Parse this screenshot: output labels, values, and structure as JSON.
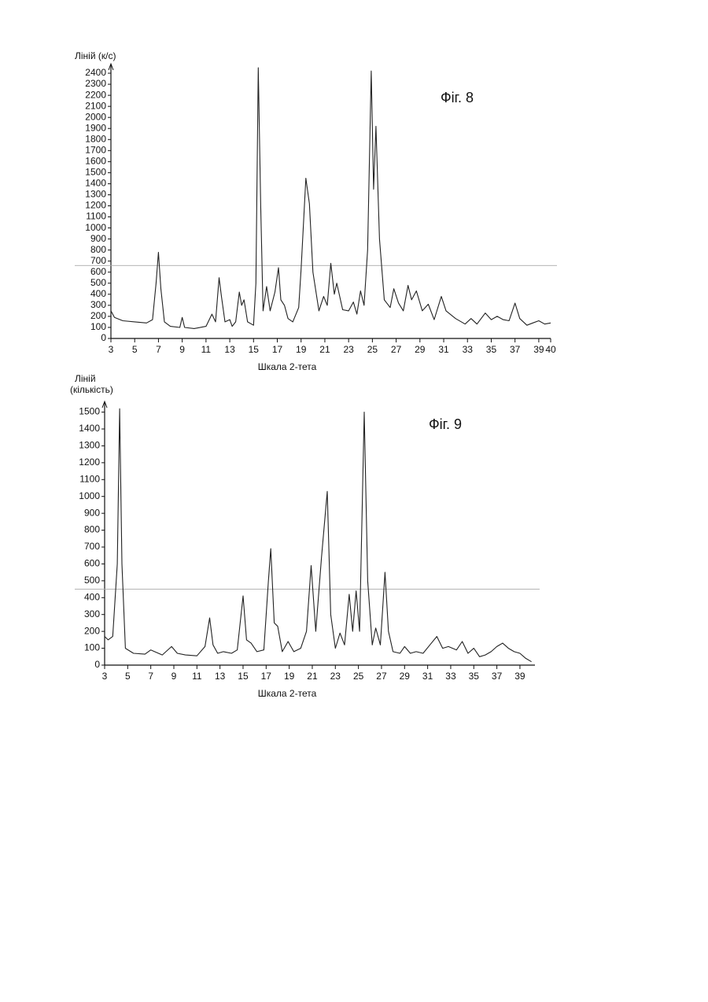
{
  "chart_data": [
    {
      "type": "line",
      "title": "Фіг. 8",
      "y_label": "Ліній (к/с)",
      "x_label": "Шкала 2-тета",
      "xlim": [
        3,
        40
      ],
      "xticks": [
        3,
        5,
        7,
        9,
        11,
        13,
        15,
        17,
        19,
        21,
        23,
        25,
        27,
        29,
        31,
        33,
        35,
        37,
        39,
        40
      ],
      "ylim": [
        0,
        2450
      ],
      "yticks": [
        0,
        100,
        200,
        300,
        400,
        500,
        600,
        700,
        800,
        900,
        1000,
        1100,
        1200,
        1300,
        1400,
        1500,
        1600,
        1700,
        1800,
        1900,
        2000,
        2100,
        2200,
        2300,
        2400
      ],
      "reference_line": 660,
      "color": "#222",
      "x": [
        3,
        3.3,
        4,
        5,
        6,
        6.5,
        6.8,
        7,
        7.2,
        7.5,
        8,
        8.8,
        9,
        9.2,
        10,
        11,
        11.5,
        11.8,
        12.1,
        12.3,
        12.6,
        13,
        13.2,
        13.5,
        13.8,
        14,
        14.2,
        14.5,
        15,
        15.2,
        15.4,
        15.6,
        15.8,
        16.1,
        16.4,
        16.8,
        17.1,
        17.3,
        17.6,
        17.9,
        18.3,
        18.8,
        19,
        19.4,
        19.7,
        20,
        20.5,
        20.9,
        21.2,
        21.5,
        21.8,
        22,
        22.5,
        23,
        23.4,
        23.7,
        24,
        24.3,
        24.6,
        24.9,
        25.1,
        25.3,
        25.6,
        26,
        26.5,
        26.8,
        27.2,
        27.6,
        28,
        28.3,
        28.7,
        29.2,
        29.7,
        30.2,
        30.8,
        31.2,
        32,
        32.8,
        33.3,
        33.8,
        34.5,
        35,
        35.5,
        36,
        36.5,
        37,
        37.4,
        38,
        38.5,
        39,
        39.5,
        40
      ],
      "values": [
        250,
        190,
        160,
        150,
        140,
        170,
        500,
        780,
        450,
        150,
        110,
        100,
        190,
        100,
        90,
        110,
        220,
        150,
        550,
        380,
        150,
        170,
        110,
        150,
        420,
        300,
        350,
        150,
        120,
        500,
        2450,
        1200,
        250,
        470,
        250,
        420,
        640,
        350,
        300,
        180,
        150,
        280,
        620,
        1450,
        1220,
        600,
        250,
        380,
        300,
        680,
        400,
        500,
        260,
        250,
        330,
        220,
        430,
        300,
        800,
        2420,
        1350,
        1920,
        900,
        350,
        280,
        450,
        320,
        250,
        480,
        350,
        430,
        250,
        310,
        170,
        380,
        250,
        180,
        130,
        180,
        130,
        230,
        170,
        200,
        170,
        160,
        320,
        180,
        120,
        140,
        160,
        130,
        140
      ]
    },
    {
      "type": "line",
      "title": "Фіг. 9",
      "y_label": [
        "Ліній",
        "(кількість)"
      ],
      "x_label": "Шкала 2-тета",
      "xlim": [
        3,
        40.3
      ],
      "xticks": [
        3,
        5,
        7,
        9,
        11,
        13,
        15,
        17,
        19,
        21,
        23,
        25,
        27,
        29,
        31,
        33,
        35,
        37,
        39
      ],
      "ylim": [
        0,
        1540
      ],
      "yticks": [
        0,
        100,
        200,
        300,
        400,
        500,
        600,
        700,
        800,
        900,
        1000,
        1100,
        1200,
        1300,
        1400,
        1500
      ],
      "reference_line": 450,
      "color": "#222",
      "x": [
        3,
        3.3,
        3.7,
        4.1,
        4.3,
        4.5,
        4.8,
        5.5,
        6.5,
        7,
        8,
        8.8,
        9.3,
        10,
        11,
        11.7,
        12.1,
        12.4,
        12.8,
        13.3,
        14,
        14.5,
        15,
        15.3,
        15.7,
        16.2,
        16.8,
        17.2,
        17.4,
        17.7,
        18,
        18.4,
        18.9,
        19.4,
        20,
        20.5,
        20.9,
        21.3,
        21.8,
        22.3,
        22.6,
        23,
        23.4,
        23.8,
        24.2,
        24.5,
        24.8,
        25.1,
        25.5,
        25.8,
        26.2,
        26.5,
        26.9,
        27.3,
        27.6,
        28,
        28.6,
        29,
        29.5,
        30,
        30.6,
        31.2,
        31.8,
        32.3,
        32.8,
        33.5,
        34,
        34.5,
        35,
        35.5,
        36,
        36.5,
        37,
        37.5,
        38,
        38.5,
        39,
        39.5,
        40
      ],
      "values": [
        170,
        150,
        170,
        600,
        1520,
        600,
        100,
        70,
        65,
        90,
        60,
        110,
        70,
        60,
        55,
        110,
        280,
        120,
        70,
        80,
        70,
        90,
        410,
        150,
        130,
        80,
        90,
        500,
        690,
        250,
        230,
        80,
        140,
        80,
        100,
        200,
        590,
        200,
        640,
        1030,
        300,
        100,
        190,
        120,
        420,
        200,
        440,
        200,
        1500,
        500,
        120,
        220,
        120,
        550,
        200,
        80,
        70,
        110,
        70,
        80,
        70,
        120,
        170,
        100,
        110,
        90,
        140,
        70,
        100,
        50,
        60,
        80,
        110,
        130,
        100,
        80,
        70,
        40,
        20
      ]
    }
  ]
}
